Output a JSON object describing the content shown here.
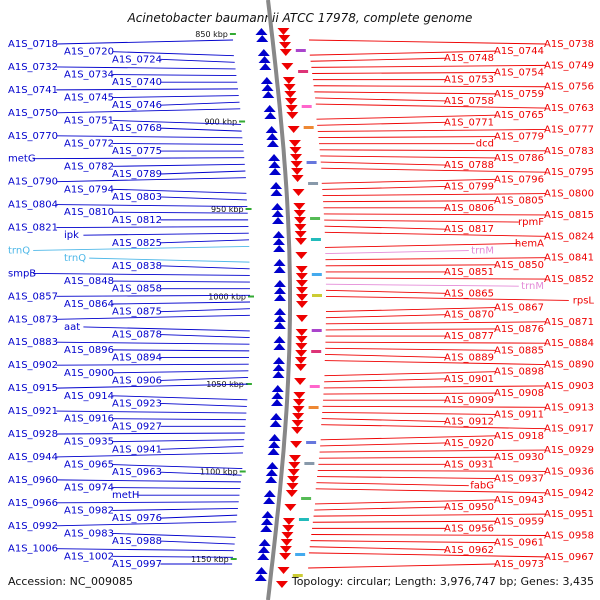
{
  "map": {
    "title": "Acinetobacter baumannii ATCC 17978, complete genome",
    "accession": "Accession: NC_009085",
    "topology": "Topology: circular; Length: 3,976,747 bp; Genes: 3,435",
    "ticks": [
      "850 kbp",
      "900 kbp",
      "950 kbp",
      "1000 kbp",
      "1050 kbp",
      "1100 kbp",
      "1150 kbp"
    ],
    "colors": {
      "left": "#0000cc",
      "right": "#ee0000",
      "rna_left": "#4fb8e8",
      "rna_right": "#e48bd8",
      "axis": "#888888",
      "tick": "#33aa33"
    }
  },
  "left_labels": [
    {
      "t": "A1S_0718"
    },
    {
      "t": "A1S_0720"
    },
    {
      "t": "A1S_0724"
    },
    {
      "t": "A1S_0732"
    },
    {
      "t": "A1S_0734"
    },
    {
      "t": "A1S_0740"
    },
    {
      "t": "A1S_0741"
    },
    {
      "t": "A1S_0745"
    },
    {
      "t": "A1S_0746"
    },
    {
      "t": "A1S_0750"
    },
    {
      "t": "A1S_0751"
    },
    {
      "t": "A1S_0768"
    },
    {
      "t": "A1S_0770"
    },
    {
      "t": "A1S_0772"
    },
    {
      "t": "A1S_0775"
    },
    {
      "t": "metG"
    },
    {
      "t": "A1S_0782"
    },
    {
      "t": "A1S_0789"
    },
    {
      "t": "A1S_0790"
    },
    {
      "t": "A1S_0794"
    },
    {
      "t": "A1S_0803"
    },
    {
      "t": "A1S_0804"
    },
    {
      "t": "A1S_0810"
    },
    {
      "t": "A1S_0812"
    },
    {
      "t": "A1S_0821"
    },
    {
      "t": "ipk"
    },
    {
      "t": "A1S_0825"
    },
    {
      "t": "trnQ",
      "rna": true
    },
    {
      "t": "trnQ",
      "rna": true
    },
    {
      "t": "A1S_0838"
    },
    {
      "t": "smpB"
    },
    {
      "t": "A1S_0848"
    },
    {
      "t": "A1S_0858"
    },
    {
      "t": "A1S_0857"
    },
    {
      "t": "A1S_0864"
    },
    {
      "t": "A1S_0875"
    },
    {
      "t": "A1S_0873"
    },
    {
      "t": "aat"
    },
    {
      "t": "A1S_0878"
    },
    {
      "t": "A1S_0883"
    },
    {
      "t": "A1S_0896"
    },
    {
      "t": "A1S_0894"
    },
    {
      "t": "A1S_0902"
    },
    {
      "t": "A1S_0900"
    },
    {
      "t": "A1S_0906"
    },
    {
      "t": "A1S_0915"
    },
    {
      "t": "A1S_0914"
    },
    {
      "t": "A1S_0923"
    },
    {
      "t": "A1S_0921"
    },
    {
      "t": "A1S_0916"
    },
    {
      "t": "A1S_0927"
    },
    {
      "t": "A1S_0928"
    },
    {
      "t": "A1S_0935"
    },
    {
      "t": "A1S_0941"
    },
    {
      "t": "A1S_0944"
    },
    {
      "t": "A1S_0965"
    },
    {
      "t": "A1S_0963"
    },
    {
      "t": "A1S_0960"
    },
    {
      "t": "A1S_0974"
    },
    {
      "t": "metH"
    },
    {
      "t": "A1S_0966"
    },
    {
      "t": "A1S_0982"
    },
    {
      "t": "A1S_0976"
    },
    {
      "t": "A1S_0992"
    },
    {
      "t": "A1S_0983"
    },
    {
      "t": "A1S_0988"
    },
    {
      "t": "A1S_1006"
    },
    {
      "t": "A1S_1002"
    },
    {
      "t": "A1S_0997"
    }
  ],
  "right_labels": [
    {
      "t": "A1S_0738"
    },
    {
      "t": "A1S_0744"
    },
    {
      "t": "A1S_0748"
    },
    {
      "t": "A1S_0749"
    },
    {
      "t": "A1S_0754"
    },
    {
      "t": "A1S_0753"
    },
    {
      "t": "A1S_0756"
    },
    {
      "t": "A1S_0759"
    },
    {
      "t": "A1S_0758"
    },
    {
      "t": "A1S_0763"
    },
    {
      "t": "A1S_0765"
    },
    {
      "t": "A1S_0771"
    },
    {
      "t": "A1S_0777"
    },
    {
      "t": "A1S_0779"
    },
    {
      "t": "dcd"
    },
    {
      "t": "A1S_0783"
    },
    {
      "t": "A1S_0786"
    },
    {
      "t": "A1S_0788"
    },
    {
      "t": "A1S_0795"
    },
    {
      "t": "A1S_0796"
    },
    {
      "t": "A1S_0799"
    },
    {
      "t": "A1S_0800"
    },
    {
      "t": "A1S_0805"
    },
    {
      "t": "A1S_0806"
    },
    {
      "t": "A1S_0815"
    },
    {
      "t": "rpmF"
    },
    {
      "t": "A1S_0817"
    },
    {
      "t": "A1S_0824"
    },
    {
      "t": "hemA"
    },
    {
      "t": "trnM",
      "rna": true
    },
    {
      "t": "A1S_0841"
    },
    {
      "t": "A1S_0850"
    },
    {
      "t": "A1S_0851"
    },
    {
      "t": "A1S_0852"
    },
    {
      "t": "trnM",
      "rna": true
    },
    {
      "t": "A1S_0865"
    },
    {
      "t": "rpsL"
    },
    {
      "t": "A1S_0867"
    },
    {
      "t": "A1S_0870"
    },
    {
      "t": "A1S_0871"
    },
    {
      "t": "A1S_0876"
    },
    {
      "t": "A1S_0877"
    },
    {
      "t": "A1S_0884"
    },
    {
      "t": "A1S_0885"
    },
    {
      "t": "A1S_0889"
    },
    {
      "t": "A1S_0890"
    },
    {
      "t": "A1S_0898"
    },
    {
      "t": "A1S_0901"
    },
    {
      "t": "A1S_0903"
    },
    {
      "t": "A1S_0908"
    },
    {
      "t": "A1S_0909"
    },
    {
      "t": "A1S_0913"
    },
    {
      "t": "A1S_0911"
    },
    {
      "t": "A1S_0912"
    },
    {
      "t": "A1S_0917"
    },
    {
      "t": "A1S_0918"
    },
    {
      "t": "A1S_0920"
    },
    {
      "t": "A1S_0929"
    },
    {
      "t": "A1S_0930"
    },
    {
      "t": "A1S_0931"
    },
    {
      "t": "A1S_0936"
    },
    {
      "t": "A1S_0937"
    },
    {
      "t": "fabG"
    },
    {
      "t": "A1S_0942"
    },
    {
      "t": "A1S_0943"
    },
    {
      "t": "A1S_0950"
    },
    {
      "t": "A1S_0951"
    },
    {
      "t": "A1S_0959"
    },
    {
      "t": "A1S_0956"
    },
    {
      "t": "A1S_0958"
    },
    {
      "t": "A1S_0961"
    },
    {
      "t": "A1S_0962"
    },
    {
      "t": "A1S_0967"
    },
    {
      "t": "A1S_0973"
    }
  ]
}
